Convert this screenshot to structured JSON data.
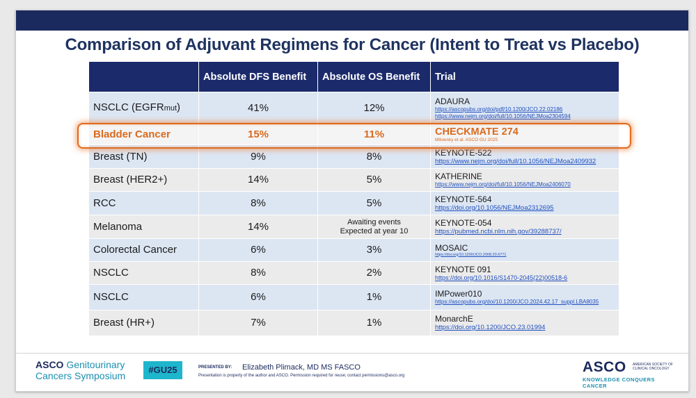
{
  "title": "Comparison of Adjuvant Regimens for Cancer (Intent to Treat vs Placebo)",
  "table": {
    "headers": [
      "",
      "Absolute DFS Benefit",
      "Absolute OS Benefit",
      "Trial"
    ],
    "rows": [
      {
        "cancer": "NSCLC (EGFR",
        "cancer_sub": "mut",
        "cancer_end": ")",
        "dfs": "41%",
        "os": "12%",
        "trial": "ADAURA",
        "links": [
          "https://ascopubs.org/doi/pdf/10.1200/JCO.22.02186",
          "https://www.nejm.org/doi/full/10.1056/NEJMoa2304594"
        ]
      },
      {
        "cancer": "Bladder Cancer",
        "dfs": "15%",
        "os": "11%",
        "trial": "CHECKMATE 274",
        "note": "Milowsky et al. ASCO GU 2025"
      },
      {
        "cancer": "Breast (TN)",
        "dfs": "9%",
        "os": "8%",
        "trial": "KEYNOTE-522",
        "link": "https://www.nejm.org/doi/full/10.1056/NEJMoa2409932"
      },
      {
        "cancer": "Breast (HER2+)",
        "dfs": "14%",
        "os": "5%",
        "trial": "KATHERINE",
        "link": "https://www.nejm.org/doi/full/10.1056/NEJMoa2406070"
      },
      {
        "cancer": "RCC",
        "dfs": "8%",
        "os": "5%",
        "trial": "KEYNOTE-564",
        "link": "https://doi.org/10.1056/NEJMoa2312695"
      },
      {
        "cancer": "Melanoma",
        "dfs": "14%",
        "os_line1": "Awaiting events",
        "os_line2": "Expected at year 10",
        "trial": "KEYNOTE-054",
        "link": "https://pubmed.ncbi.nlm.nih.gov/39288737/"
      },
      {
        "cancer": "Colorectal Cancer",
        "dfs": "6%",
        "os": "3%",
        "trial": "MOSAIC",
        "link": "https://doi.org/10.1200/JCO.2008.20.6771"
      },
      {
        "cancer": "NSCLC",
        "dfs": "8%",
        "os": "2%",
        "trial": "KEYNOTE 091",
        "link": "https://doi.org/10.1016/S1470-2045(22)00518-6"
      },
      {
        "cancer": "NSCLC",
        "dfs": "6%",
        "os": "1%",
        "trial": "IMPower010",
        "link": "https://ascopubs.org/doi/10.1200/JCO.2024.42.17_suppl.LBA8035"
      },
      {
        "cancer": "Breast (HR+)",
        "dfs": "7%",
        "os": "1%",
        "trial": "MonarchE",
        "link": "https://doi.org/10.1200/JCO.23.01994"
      }
    ]
  },
  "footer": {
    "logo_bold": "ASCO",
    "logo_line1": "Genitourinary",
    "logo_line2": "Cancers Symposium",
    "hashtag": "#GU25",
    "presented_label": "PRESENTED BY:",
    "presenter": "Elizabeth Plimack, MD MS FASCO",
    "disclaimer": "Presentation is property of the author and ASCO. Permission required for reuse; contact permissions@asco.org",
    "asco_word": "ASCO",
    "asco_sub": "AMERICAN SOCIETY OF CLINICAL ONCOLOGY",
    "asco_tag": "KNOWLEDGE CONQUERS CANCER"
  },
  "colors": {
    "header_bg": "#1b2a6b",
    "highlight": "#d96a1e",
    "title": "#1f3360",
    "link": "#1f4fbf"
  }
}
